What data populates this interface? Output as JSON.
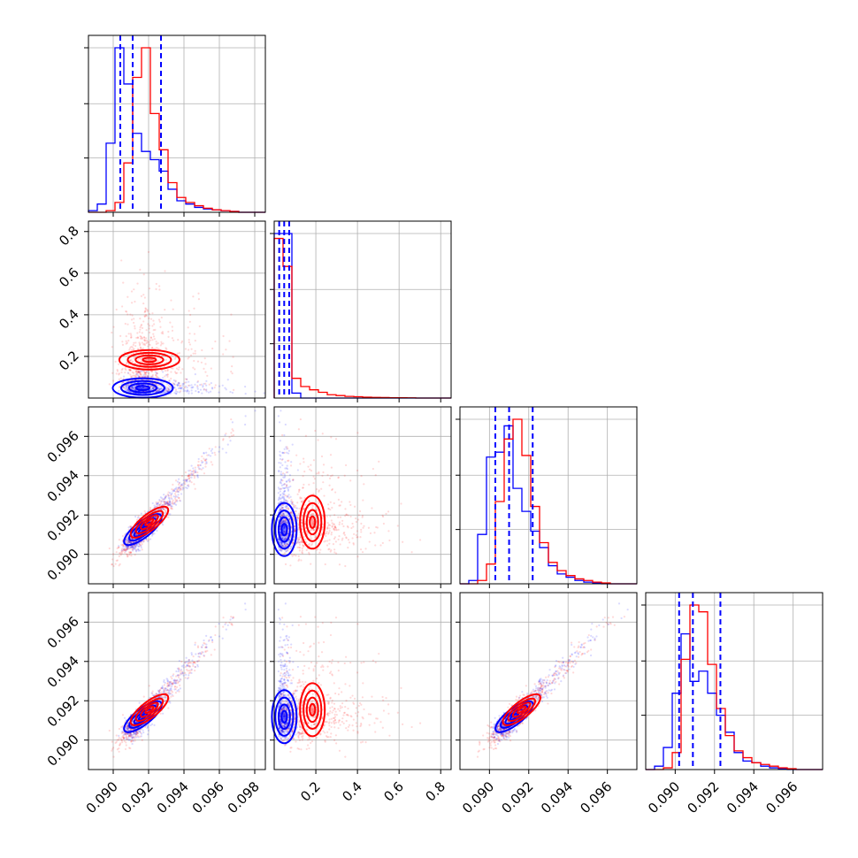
{
  "figure": {
    "kind": "corner-plot",
    "series": [
      {
        "color": "#0000ff"
      },
      {
        "color": "#ff0000"
      }
    ]
  },
  "axes": {
    "p1": {
      "range": [
        0.0886,
        0.0986
      ],
      "ticks": [
        0.09,
        0.092,
        0.094,
        0.096,
        0.098
      ],
      "tick_labels": [
        "0.090",
        "0.092",
        "0.094",
        "0.096",
        "0.098"
      ]
    },
    "p2": {
      "range": [
        0.0,
        0.85
      ],
      "ticks": [
        0.2,
        0.4,
        0.6,
        0.8
      ],
      "tick_labels": [
        "0.2",
        "0.4",
        "0.6",
        "0.8"
      ]
    },
    "p3": {
      "range": [
        0.0885,
        0.0975
      ],
      "ticks": [
        0.09,
        0.092,
        0.094,
        0.096
      ],
      "tick_labels": [
        "0.090",
        "0.092",
        "0.094",
        "0.096"
      ]
    },
    "p4": {
      "range": [
        0.0885,
        0.0975
      ],
      "ticks": [
        0.09,
        0.092,
        0.094,
        0.096
      ],
      "tick_labels": [
        "0.090",
        "0.092",
        "0.094",
        "0.096"
      ]
    }
  },
  "chart_data": {
    "type": "histogram",
    "grid": true,
    "diagonal": [
      {
        "param": "p1",
        "bin_edges": [
          0.0886,
          0.0891,
          0.0896,
          0.0901,
          0.0906,
          0.0911,
          0.0916,
          0.0921,
          0.0926,
          0.0931,
          0.0936,
          0.0941,
          0.0946,
          0.0951,
          0.0956,
          0.0961,
          0.0966,
          0.0971,
          0.0976,
          0.0981,
          0.0986
        ],
        "blue_counts": [
          0.01,
          0.05,
          0.42,
          1.0,
          0.78,
          0.48,
          0.37,
          0.32,
          0.25,
          0.14,
          0.07,
          0.05,
          0.03,
          0.02,
          0.015,
          0.01,
          0.005,
          0.0,
          0.0,
          0.0
        ],
        "red_counts": [
          0.0,
          0.0,
          0.01,
          0.06,
          0.3,
          0.82,
          1.0,
          0.6,
          0.38,
          0.18,
          0.09,
          0.06,
          0.04,
          0.025,
          0.015,
          0.01,
          0.005,
          0.0,
          0.0,
          0.0
        ],
        "blue_quantiles": [
          0.0904,
          0.0911,
          0.0927
        ]
      },
      {
        "param": "p2",
        "bin_edges": [
          0.0,
          0.0425,
          0.085,
          0.1275,
          0.17,
          0.2125,
          0.255,
          0.2975,
          0.34,
          0.3825,
          0.425,
          0.4675,
          0.51,
          0.5525,
          0.595,
          0.6375,
          0.68,
          0.7225,
          0.765,
          0.8075,
          0.85
        ],
        "blue_counts": [
          1.0,
          1.0,
          0.03,
          0.0,
          0.0,
          0.0,
          0.0,
          0.0,
          0.0,
          0.0,
          0.0,
          0.0,
          0.0,
          0.0,
          0.0,
          0.0,
          0.0,
          0.0,
          0.0,
          0.0
        ],
        "red_counts": [
          0.97,
          0.8,
          0.12,
          0.07,
          0.05,
          0.035,
          0.02,
          0.015,
          0.01,
          0.008,
          0.005,
          0.004,
          0.003,
          0.002,
          0.002,
          0.001,
          0.0,
          0.0,
          0.0,
          0.0
        ],
        "blue_quantiles": [
          0.024,
          0.048,
          0.072
        ]
      },
      {
        "param": "p3",
        "bin_edges": [
          0.0885,
          0.08895,
          0.0894,
          0.08985,
          0.0903,
          0.09075,
          0.0912,
          0.09165,
          0.0921,
          0.09255,
          0.093,
          0.09345,
          0.0939,
          0.09435,
          0.0948,
          0.09525,
          0.0957,
          0.09615,
          0.0966,
          0.09705,
          0.0975
        ],
        "blue_counts": [
          0.0,
          0.02,
          0.3,
          0.77,
          0.8,
          0.96,
          0.58,
          0.44,
          0.32,
          0.22,
          0.11,
          0.06,
          0.04,
          0.02,
          0.01,
          0.005,
          0.0,
          0.0,
          0.0,
          0.0
        ],
        "red_counts": [
          0.0,
          0.0,
          0.02,
          0.12,
          0.5,
          0.88,
          1.0,
          0.78,
          0.47,
          0.25,
          0.13,
          0.08,
          0.05,
          0.03,
          0.02,
          0.01,
          0.005,
          0.0,
          0.0,
          0.0
        ],
        "blue_quantiles": [
          0.0903,
          0.091,
          0.0922
        ]
      },
      {
        "param": "p4",
        "bin_edges": [
          0.0885,
          0.08895,
          0.0894,
          0.08985,
          0.0903,
          0.09075,
          0.0912,
          0.09165,
          0.0921,
          0.09255,
          0.093,
          0.09345,
          0.0939,
          0.09435,
          0.0948,
          0.09525,
          0.0957,
          0.09615,
          0.0966,
          0.09705,
          0.0975
        ],
        "blue_counts": [
          0.0,
          0.02,
          0.13,
          0.45,
          0.8,
          0.52,
          0.58,
          0.45,
          0.32,
          0.22,
          0.1,
          0.05,
          0.04,
          0.02,
          0.01,
          0.005,
          0.0,
          0.0,
          0.0,
          0.0
        ],
        "red_counts": [
          0.0,
          0.0,
          0.01,
          0.1,
          0.65,
          0.97,
          0.93,
          0.62,
          0.36,
          0.2,
          0.11,
          0.07,
          0.04,
          0.03,
          0.02,
          0.01,
          0.005,
          0.0,
          0.0,
          0.0
        ],
        "blue_quantiles": [
          0.0902,
          0.0909,
          0.0923
        ]
      }
    ],
    "scatter_panels": [
      {
        "x": "p1",
        "y": "p2"
      },
      {
        "x": "p1",
        "y": "p3"
      },
      {
        "x": "p2",
        "y": "p3"
      },
      {
        "x": "p1",
        "y": "p4"
      },
      {
        "x": "p2",
        "y": "p4"
      },
      {
        "x": "p3",
        "y": "p4"
      }
    ]
  }
}
